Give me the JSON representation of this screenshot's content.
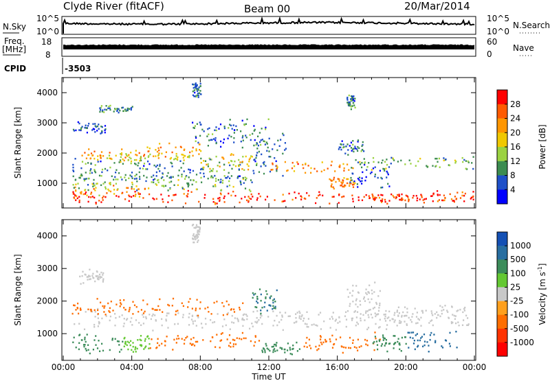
{
  "header": {
    "left": "Clyde River (fitACF)",
    "center": "Beam 00",
    "right": "20/Mar/2014"
  },
  "top_panels": {
    "nsky_label": "N.Sky",
    "nsky_ticks": [
      "10^5",
      "10^0"
    ],
    "nsearch_label": "N.Search",
    "nsearch_ticks": [
      "10^5",
      "10^0"
    ],
    "freq_label_1": "Freq.",
    "freq_label_2": "[MHz]",
    "freq_ticks": [
      "18",
      "8"
    ],
    "nave_label": "Nave",
    "nave_ticks": [
      "60",
      "0"
    ],
    "cpid_label": "CPID",
    "cpid_value": "-3503"
  },
  "chart_data": [
    {
      "type": "heatmap",
      "title": "",
      "xlabel": "",
      "ylabel": "Slant Range [km]",
      "xlim": [
        "00:00",
        "00:00"
      ],
      "ylim": [
        180,
        4500
      ],
      "yticks": [
        "1000",
        "2000",
        "3000",
        "4000"
      ],
      "colorbar": {
        "label": "Power [dB]",
        "ticks": [
          "28",
          "24",
          "20",
          "16",
          "12",
          "8",
          "4"
        ],
        "colors": [
          "#ff0000",
          "#ff5a00",
          "#ff9600",
          "#f0c800",
          "#9bd241",
          "#3c8c50",
          "#1e50c8",
          "#0000ff"
        ]
      },
      "blobs": [
        {
          "t": 0.5,
          "w": 23.5,
          "r": 550,
          "h": 250,
          "v": 28
        },
        {
          "t": 0.5,
          "w": 4.5,
          "r": 800,
          "h": 300,
          "v": 20
        },
        {
          "t": 0.5,
          "w": 10.5,
          "r": 1050,
          "h": 350,
          "v": 12
        },
        {
          "t": 0.5,
          "w": 10,
          "r": 1450,
          "h": 450,
          "v": 8
        },
        {
          "t": 1.0,
          "w": 3.5,
          "r": 1950,
          "h": 250,
          "v": 22
        },
        {
          "t": 2.5,
          "w": 5,
          "r": 1900,
          "h": 150,
          "v": 16
        },
        {
          "t": 4.5,
          "w": 3.5,
          "r": 2100,
          "h": 300,
          "v": 22
        },
        {
          "t": 8.0,
          "w": 3,
          "r": 1700,
          "h": 400,
          "v": 18
        },
        {
          "t": 0.5,
          "w": 2,
          "r": 2850,
          "h": 220,
          "v": 6
        },
        {
          "t": 7.5,
          "w": 4.5,
          "r": 2700,
          "h": 600,
          "v": 8
        },
        {
          "t": 11.0,
          "w": 2,
          "r": 1900,
          "h": 800,
          "v": 8
        },
        {
          "t": 12.0,
          "w": 5,
          "r": 1550,
          "h": 250,
          "v": 24
        },
        {
          "t": 15.5,
          "w": 1.5,
          "r": 1050,
          "h": 250,
          "v": 22
        },
        {
          "t": 16.5,
          "w": 2.5,
          "r": 1250,
          "h": 450,
          "v": 6
        },
        {
          "t": 16.0,
          "w": 1.5,
          "r": 2200,
          "h": 300,
          "v": 8
        },
        {
          "t": 17.0,
          "w": 7,
          "r": 1700,
          "h": 300,
          "v": 12
        },
        {
          "t": 17.5,
          "w": 6.5,
          "r": 550,
          "h": 200,
          "v": 28
        },
        {
          "t": 2.0,
          "w": 2,
          "r": 3500,
          "h": 150,
          "v": 10
        },
        {
          "t": 7.5,
          "w": 0.5,
          "r": 4100,
          "h": 300,
          "v": 8
        },
        {
          "t": 16.5,
          "w": 0.5,
          "r": 3700,
          "h": 250,
          "v": 8
        }
      ]
    },
    {
      "type": "heatmap",
      "title": "",
      "xlabel": "Time UT",
      "ylabel": "Slant Range [km]",
      "xlim": [
        "00:00",
        "00:00"
      ],
      "xticks": [
        "00:00",
        "04:00",
        "08:00",
        "12:00",
        "16:00",
        "20:00",
        "00:00"
      ],
      "ylim": [
        180,
        4500
      ],
      "yticks": [
        "1000",
        "2000",
        "3000",
        "4000"
      ],
      "colorbar": {
        "label": "Velocity [m s^-1]",
        "label_parts": [
          "Velocity [m s",
          "-1",
          "]"
        ],
        "ticks": [
          "1000",
          "500",
          "100",
          "25",
          "-25",
          "-100",
          "-500",
          "-1000"
        ],
        "colors": [
          "#1450b4",
          "#286ea0",
          "#3c8c5a",
          "#64c832",
          "#c8c8c8",
          "#ffa01e",
          "#ff6e00",
          "#ff3200",
          "#ff0000"
        ]
      },
      "blobs": [
        {
          "t": 0.5,
          "w": 3,
          "r": 750,
          "h": 350,
          "v": 300
        },
        {
          "t": 3.5,
          "w": 1.5,
          "r": 750,
          "h": 300,
          "v": 80
        },
        {
          "t": 5.0,
          "w": 6.5,
          "r": 800,
          "h": 300,
          "v": -300
        },
        {
          "t": 11.5,
          "w": 2.5,
          "r": 600,
          "h": 250,
          "v": 200
        },
        {
          "t": 14.0,
          "w": 4.5,
          "r": 750,
          "h": 350,
          "v": -300
        },
        {
          "t": 18.0,
          "w": 2,
          "r": 750,
          "h": 350,
          "v": 300
        },
        {
          "t": 20.0,
          "w": 3,
          "r": 800,
          "h": 400,
          "v": 700
        },
        {
          "t": 0.5,
          "w": 23.5,
          "r": 1450,
          "h": 350,
          "v": 0
        },
        {
          "t": 0.5,
          "w": 10,
          "r": 1850,
          "h": 300,
          "v": -300
        },
        {
          "t": 0.8,
          "w": 1.5,
          "r": 2800,
          "h": 250,
          "v": 0
        },
        {
          "t": 11.0,
          "w": 1.5,
          "r": 1950,
          "h": 500,
          "v": 500
        },
        {
          "t": 16.5,
          "w": 2,
          "r": 2200,
          "h": 450,
          "v": 0
        },
        {
          "t": 17.0,
          "w": 6.5,
          "r": 1700,
          "h": 250,
          "v": 0
        },
        {
          "t": 7.5,
          "w": 0.5,
          "r": 4100,
          "h": 300,
          "v": 0
        }
      ]
    }
  ]
}
